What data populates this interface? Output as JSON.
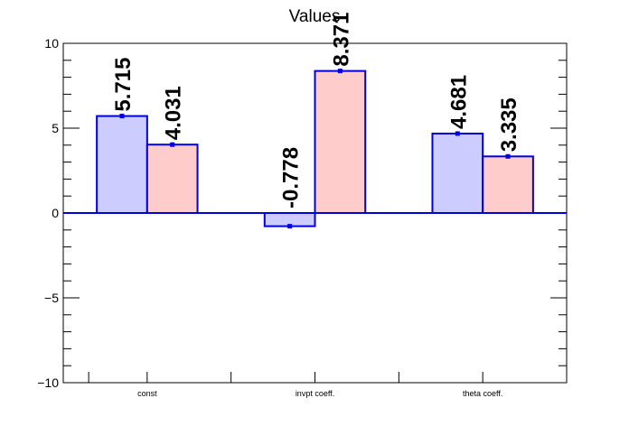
{
  "chart_data": {
    "type": "bar",
    "title": "Values",
    "categories": [
      "const",
      "invpt coeff.",
      "theta coeff."
    ],
    "series": [
      {
        "values": [
          5.715,
          -0.778,
          4.681
        ],
        "color": "#ccccff",
        "data_labels": [
          "5.715",
          "-0.778",
          "4.681"
        ]
      },
      {
        "values": [
          4.031,
          8.371,
          3.335
        ],
        "color": "#ffcccc",
        "data_labels": [
          "4.031",
          "8.371",
          "3.335"
        ]
      }
    ],
    "outline_color": "#0000dd",
    "ylim": [
      -10,
      10
    ],
    "y_ticks": [
      -10,
      -5,
      0,
      5,
      10
    ],
    "y_tick_labels": [
      "−10",
      "−5",
      "0",
      "5",
      "10"
    ],
    "xlabel": "",
    "ylabel": "",
    "grid": false,
    "legend": "none"
  }
}
